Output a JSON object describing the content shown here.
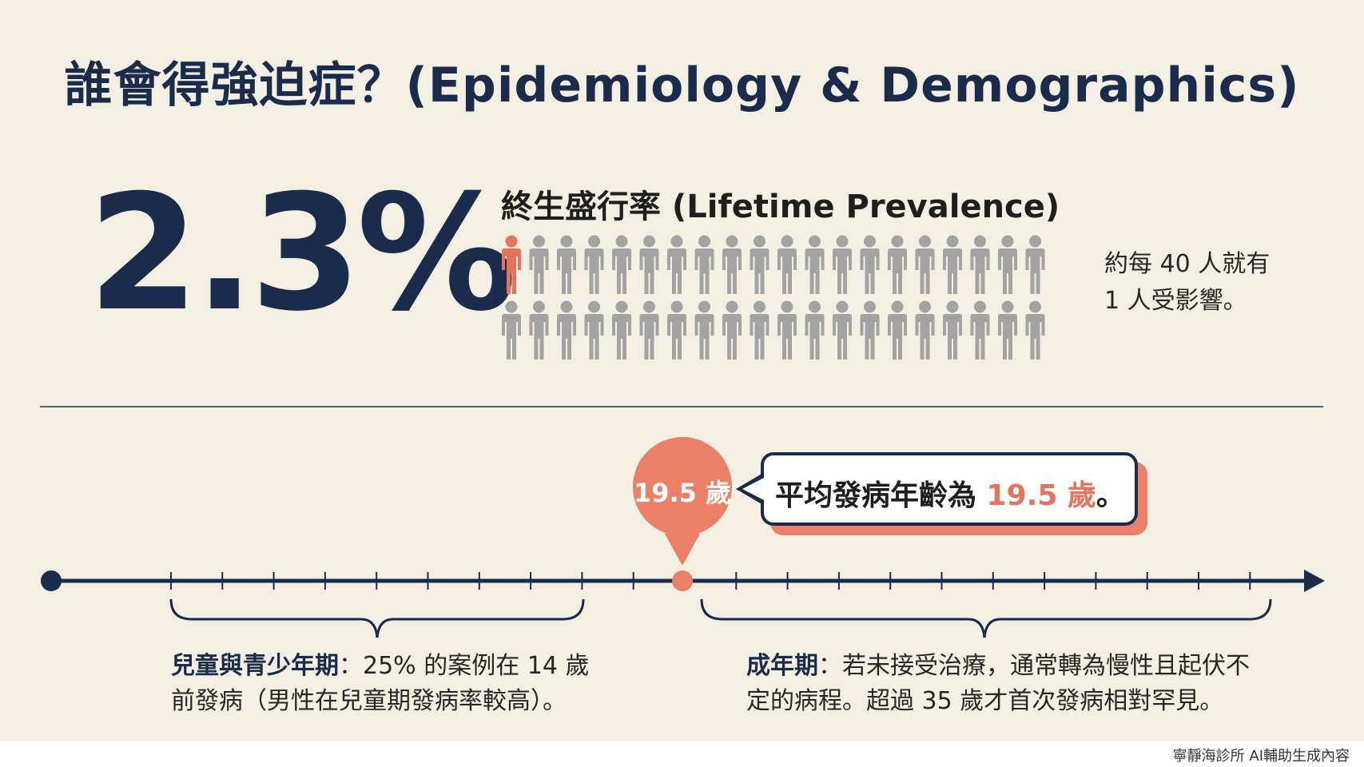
{
  "title": "誰會得強迫症？(Epidemiology & Demographics)",
  "stat": {
    "value": "2.3%",
    "label": "終生盛行率 (Lifetime Prevalence)",
    "ratio_line1": "約每 40 人就有",
    "ratio_line2": "1 人受影響。",
    "people_total": 40,
    "people_highlighted": 1
  },
  "onset": {
    "pin_label": "19.5 歲",
    "callout_prefix": "平均發病年齡為 ",
    "callout_highlight": "19.5 歲",
    "callout_suffix": "。"
  },
  "phases": {
    "child": {
      "name": "兒童與青少年期",
      "text": "：25% 的案例在 14 歲前發病（男性在兒童期發病率較高）。"
    },
    "adult": {
      "name": "成年期",
      "text": "：若未接受治療，通常轉為慢性且起伏不定的病程。超過 35 歲才首次發病相對罕見。"
    }
  },
  "footer": "寧靜海診所 AI輔助生成內容",
  "colors": {
    "navy": "#1a2b4c",
    "coral": "#e8735d",
    "person_gray": "#a3a3a3",
    "background": "#f3efe3"
  }
}
